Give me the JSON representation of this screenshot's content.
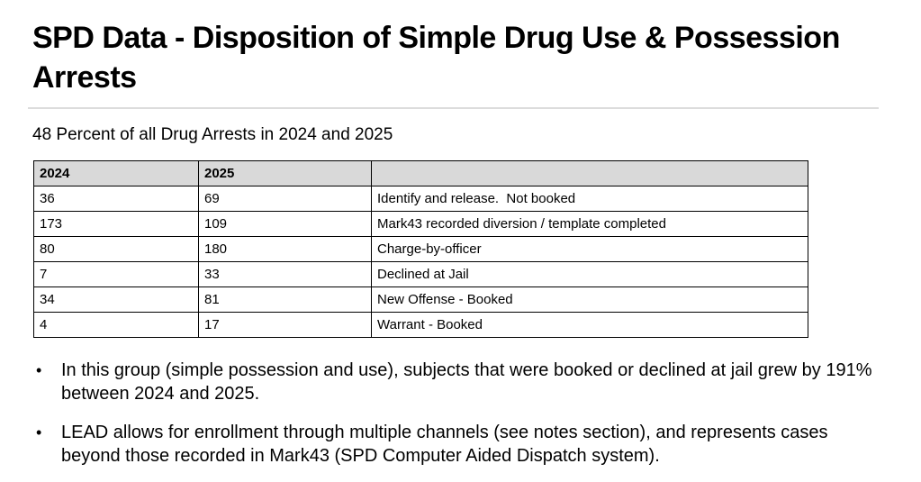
{
  "slide": {
    "title": "SPD Data - Disposition of Simple Drug Use & Possession Arrests",
    "subtitle": "48 Percent of all Drug Arrests in 2024 and 2025"
  },
  "table": {
    "headers": [
      "2024",
      "2025",
      ""
    ],
    "rows": [
      [
        "36",
        "69",
        "Identify and release.  Not booked"
      ],
      [
        "173",
        "109",
        "Mark43 recorded diversion / template completed"
      ],
      [
        "80",
        "180",
        "Charge-by-officer"
      ],
      [
        "7",
        "33",
        "Declined at Jail"
      ],
      [
        "34",
        "81",
        "New Offense - Booked"
      ],
      [
        "4",
        "17",
        "Warrant - Booked"
      ]
    ]
  },
  "bullets": {
    "marker": "•",
    "items": [
      "In this group (simple possession and use), subjects that were booked or declined at jail grew by 191% between 2024 and 2025.",
      "LEAD allows for enrollment through multiple channels (see notes section), and represents cases beyond those recorded in Mark43 (SPD Computer Aided Dispatch system)."
    ]
  },
  "colors": {
    "text": "#000000",
    "table_header_bg": "#d9d9d9",
    "table_border": "#000000",
    "divider": "#dcdcdc",
    "background": "#ffffff"
  }
}
